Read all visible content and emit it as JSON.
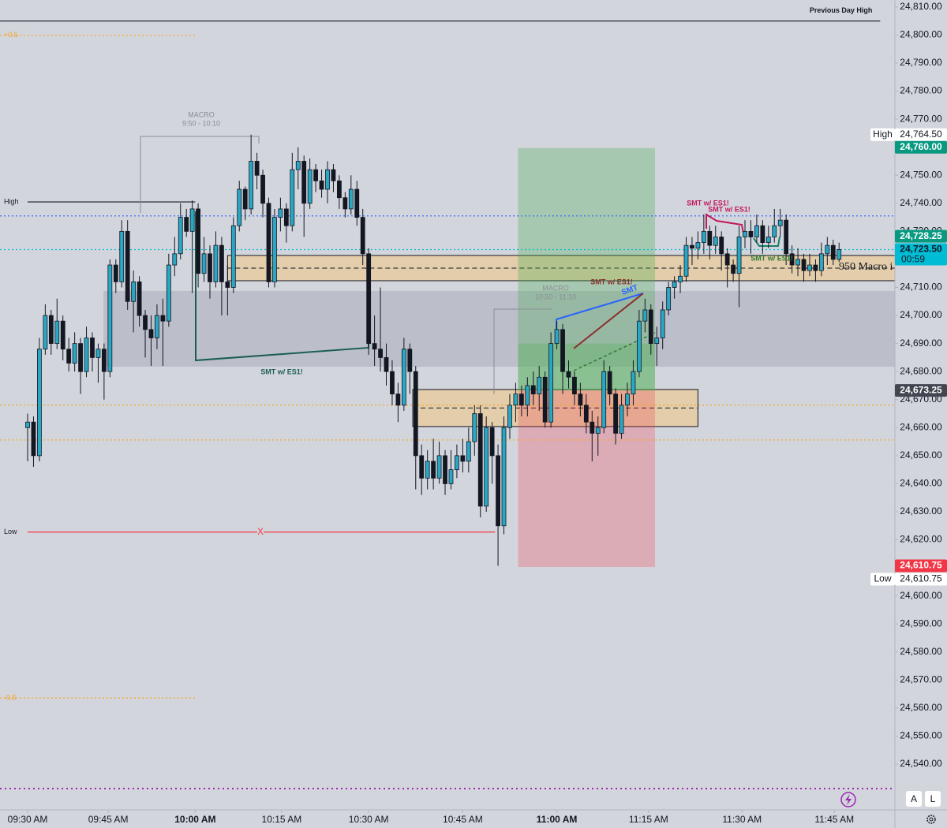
{
  "chart_data": {
    "type": "candlestick",
    "xlim": [
      -4.7,
      147.5
    ],
    "ylim": [
      24523.7,
      24812.5
    ],
    "xticks": [
      {
        "value": 0,
        "label": "09:30 AM"
      },
      {
        "value": 13.7,
        "label": "09:45 AM"
      },
      {
        "value": 28.5,
        "label": "10:00 AM",
        "bold": true
      },
      {
        "value": 43.2,
        "label": "10:15 AM"
      },
      {
        "value": 58,
        "label": "10:30 AM"
      },
      {
        "value": 74,
        "label": "10:45 AM"
      },
      {
        "value": 90,
        "label": "11:00 AM",
        "bold": true
      },
      {
        "value": 105.6,
        "label": "11:15 AM"
      },
      {
        "value": 121.5,
        "label": "11:30 AM"
      },
      {
        "value": 137.2,
        "label": "11:45 AM"
      }
    ],
    "yticks": [
      {
        "value": 24810,
        "label": "24,810.00"
      },
      {
        "value": 24800,
        "label": "24,800.00"
      },
      {
        "value": 24790,
        "label": "24,790.00"
      },
      {
        "value": 24780,
        "label": "24,780.00"
      },
      {
        "value": 24770,
        "label": "24,770.00"
      },
      {
        "value": 24760,
        "label": "24,760.00"
      },
      {
        "value": 24750,
        "label": "24,750.00"
      },
      {
        "value": 24740,
        "label": "24,740.00"
      },
      {
        "value": 24730,
        "label": "24,730.00"
      },
      {
        "value": 24720,
        "label": "24,720.00"
      },
      {
        "value": 24710,
        "label": "24,710.00"
      },
      {
        "value": 24700,
        "label": "24,700.00"
      },
      {
        "value": 24690,
        "label": "24,690.00"
      },
      {
        "value": 24680,
        "label": "24,680.00"
      },
      {
        "value": 24670,
        "label": "24,670.00"
      },
      {
        "value": 24660,
        "label": "24,660.00"
      },
      {
        "value": 24650,
        "label": "24,650.00"
      },
      {
        "value": 24640,
        "label": "24,640.00"
      },
      {
        "value": 24630,
        "label": "24,630.00"
      },
      {
        "value": 24620,
        "label": "24,620.00"
      },
      {
        "value": 24610,
        "label": "24,610.00"
      },
      {
        "value": 24600,
        "label": "24,600.00"
      },
      {
        "value": 24590,
        "label": "24,590.00"
      },
      {
        "value": 24580,
        "label": "24,580.00"
      },
      {
        "value": 24570,
        "label": "24,570.00"
      },
      {
        "value": 24560,
        "label": "24,560.00"
      },
      {
        "value": 24550,
        "label": "24,550.00"
      },
      {
        "value": 24540,
        "label": "24,540.00"
      }
    ],
    "up_color": "#2aa7c4",
    "down_color": "#131722",
    "ohlc": [
      [
        24660,
        24665,
        24648,
        24662
      ],
      [
        24662,
        24664,
        24646,
        24650
      ],
      [
        24650,
        24692,
        24648,
        24688
      ],
      [
        24688,
        24704,
        24686,
        24700
      ],
      [
        24700,
        24702,
        24686,
        24690
      ],
      [
        24690,
        24706,
        24688,
        24698
      ],
      [
        24698,
        24700,
        24684,
        24688
      ],
      [
        24688,
        24692,
        24680,
        24683
      ],
      [
        24683,
        24694,
        24680,
        24690
      ],
      [
        24690,
        24692,
        24672,
        24680
      ],
      [
        24680,
        24696,
        24678,
        24692
      ],
      [
        24692,
        24694,
        24680,
        24685
      ],
      [
        24685,
        24690,
        24676,
        24688
      ],
      [
        24688,
        24690,
        24670,
        24680
      ],
      [
        24680,
        24720,
        24678,
        24718
      ],
      [
        24718,
        24720,
        24708,
        24712
      ],
      [
        24712,
        24734,
        24710,
        24730
      ],
      [
        24730,
        24734,
        24702,
        24705
      ],
      [
        24705,
        24716,
        24694,
        24712
      ],
      [
        24712,
        24714,
        24696,
        24700
      ],
      [
        24700,
        24702,
        24685,
        24695
      ],
      [
        24695,
        24700,
        24682,
        24692
      ],
      [
        24692,
        24704,
        24688,
        24700
      ],
      [
        24700,
        24706,
        24682,
        24698
      ],
      [
        24698,
        24722,
        24696,
        24718
      ],
      [
        24718,
        24728,
        24714,
        24722
      ],
      [
        24722,
        24740,
        24720,
        24735
      ],
      [
        24735,
        24738,
        24728,
        24730
      ],
      [
        24730,
        24741,
        24708,
        24738
      ],
      [
        24738,
        24740,
        24710,
        24715
      ],
      [
        24715,
        24728,
        24712,
        24722
      ],
      [
        24722,
        24725,
        24706,
        24712
      ],
      [
        24712,
        24730,
        24710,
        24725
      ],
      [
        24725,
        24728,
        24700,
        24712
      ],
      [
        24712,
        24718,
        24700,
        24710
      ],
      [
        24710,
        24735,
        24708,
        24732
      ],
      [
        24732,
        24748,
        24730,
        24745
      ],
      [
        24745,
        24746,
        24734,
        24738
      ],
      [
        24738,
        24764.5,
        24736,
        24755
      ],
      [
        24755,
        24758,
        24745,
        24750
      ],
      [
        24750,
        24752,
        24735,
        24740
      ],
      [
        24740,
        24742,
        24710,
        24712
      ],
      [
        24712,
        24738,
        24710,
        24735
      ],
      [
        24735,
        24742,
        24730,
        24738
      ],
      [
        24738,
        24740,
        24726,
        24732
      ],
      [
        24732,
        24758,
        24730,
        24752
      ],
      [
        24752,
        24760,
        24745,
        24755
      ],
      [
        24755,
        24757,
        24728,
        24740
      ],
      [
        24740,
        24756,
        24738,
        24752
      ],
      [
        24752,
        24754,
        24744,
        24748
      ],
      [
        24748,
        24752,
        24742,
        24745
      ],
      [
        24745,
        24755,
        24740,
        24752
      ],
      [
        24752,
        24754,
        24744,
        24748
      ],
      [
        24748,
        24750,
        24738,
        24742
      ],
      [
        24742,
        24744,
        24735,
        24738
      ],
      [
        24738,
        24750,
        24736,
        24745
      ],
      [
        24745,
        24748,
        24732,
        24735
      ],
      [
        24735,
        24738,
        24718,
        24722
      ],
      [
        24722,
        24724,
        24686,
        24690
      ],
      [
        24690,
        24700,
        24682,
        24688
      ],
      [
        24688,
        24710,
        24680,
        24685
      ],
      [
        24685,
        24690,
        24675,
        24680
      ],
      [
        24680,
        24684,
        24668,
        24672
      ],
      [
        24672,
        24676,
        24662,
        24668
      ],
      [
        24668,
        24692,
        24666,
        24688
      ],
      [
        24688,
        24690,
        24672,
        24680
      ],
      [
        24680,
        24682,
        24638,
        24650
      ],
      [
        24650,
        24654,
        24636,
        24642
      ],
      [
        24642,
        24652,
        24638,
        24648
      ],
      [
        24648,
        24656,
        24638,
        24642
      ],
      [
        24642,
        24655,
        24640,
        24650
      ],
      [
        24650,
        24652,
        24636,
        24640
      ],
      [
        24640,
        24652,
        24638,
        24645
      ],
      [
        24645,
        24654,
        24642,
        24650
      ],
      [
        24650,
        24656,
        24644,
        24648
      ],
      [
        24648,
        24660,
        24644,
        24655
      ],
      [
        24655,
        24668,
        24650,
        24665
      ],
      [
        24665,
        24668,
        24628,
        24632
      ],
      [
        24632,
        24664,
        24630,
        24660
      ],
      [
        24660,
        24662,
        24640,
        24650
      ],
      [
        24650,
        24654,
        24610.75,
        24625
      ],
      [
        24625,
        24664,
        24622,
        24660
      ],
      [
        24660,
        24672,
        24656,
        24668
      ],
      [
        24668,
        24676,
        24662,
        24672
      ],
      [
        24672,
        24675,
        24664,
        24668
      ],
      [
        24668,
        24678,
        24664,
        24675
      ],
      [
        24675,
        24680,
        24668,
        24672
      ],
      [
        24672,
        24682,
        24666,
        24678
      ],
      [
        24678,
        24680,
        24660,
        24662
      ],
      [
        24662,
        24694,
        24660,
        24690
      ],
      [
        24690,
        24698,
        24688,
        24695
      ],
      [
        24695,
        24697,
        24672,
        24680
      ],
      [
        24680,
        24684,
        24674,
        24678
      ],
      [
        24678,
        24680,
        24668,
        24672
      ],
      [
        24672,
        24676,
        24664,
        24668
      ],
      [
        24668,
        24672,
        24658,
        24662
      ],
      [
        24662,
        24666,
        24648,
        24658
      ],
      [
        24658,
        24664,
        24650,
        24660
      ],
      [
        24660,
        24684,
        24658,
        24680
      ],
      [
        24680,
        24682,
        24668,
        24672
      ],
      [
        24672,
        24674,
        24654,
        24658
      ],
      [
        24658,
        24672,
        24656,
        24668
      ],
      [
        24668,
        24676,
        24664,
        24672
      ],
      [
        24672,
        24684,
        24668,
        24680
      ],
      [
        24680,
        24702,
        24678,
        24698
      ],
      [
        24698,
        24706,
        24694,
        24702
      ],
      [
        24702,
        24704,
        24686,
        24690
      ],
      [
        24690,
        24696,
        24682,
        24692
      ],
      [
        24692,
        24705,
        24688,
        24702
      ],
      [
        24702,
        24712,
        24700,
        24710
      ],
      [
        24710,
        24714,
        24706,
        24712
      ],
      [
        24712,
        24718,
        24708,
        24714
      ],
      [
        24714,
        24728,
        24712,
        24725
      ],
      [
        24725,
        24728,
        24718,
        24724
      ],
      [
        24724,
        24730,
        24720,
        24726
      ],
      [
        24726,
        24736,
        24722,
        24730
      ],
      [
        24730,
        24732,
        24720,
        24725
      ],
      [
        24725,
        24732,
        24722,
        24728
      ],
      [
        24728,
        24730,
        24716,
        24722
      ],
      [
        24722,
        24724,
        24710,
        24718
      ],
      [
        24718,
        24720,
        24712,
        24715
      ],
      [
        24715,
        24732,
        24703,
        24728
      ],
      [
        24728,
        24734,
        24724,
        24730
      ],
      [
        24730,
        24734,
        24722,
        24728
      ],
      [
        24728,
        24736,
        24726,
        24732
      ],
      [
        24732,
        24734,
        24722,
        24726
      ],
      [
        24726,
        24732,
        24724,
        24728
      ],
      [
        24728,
        24738,
        24726,
        24732
      ],
      [
        24732,
        24738,
        24728,
        24734
      ],
      [
        24734,
        24736,
        24718,
        24722
      ],
      [
        24722,
        24725,
        24715,
        24718
      ],
      [
        24718,
        24724,
        24714,
        24720
      ],
      [
        24720,
        24722,
        24712,
        24716
      ],
      [
        24716,
        24722,
        24714,
        24718
      ],
      [
        24718,
        24720,
        24712,
        24716
      ],
      [
        24716,
        24726,
        24714,
        24722
      ],
      [
        24722,
        24728,
        24718,
        24725
      ],
      [
        24725,
        24727,
        24718,
        24720
      ],
      [
        24720,
        24726,
        24719,
        24723.5
      ]
    ],
    "zones": [
      {
        "x": [
          12.9,
          147.5
        ],
        "y": [
          24681.75,
          24708.75
        ],
        "color": "rgba(150,152,170,0.38)"
      },
      {
        "x": [
          34,
          147.5
        ],
        "y": [
          24712.4,
          24721.4
        ],
        "color": "rgba(240,198,128,0.55)",
        "mid": true
      },
      {
        "x": [
          65.5,
          114
        ],
        "y": [
          24660.4,
          24673.6
        ],
        "color": "rgba(240,198,128,0.55)",
        "mid": true
      },
      {
        "x": [
          83.4,
          106.7
        ],
        "y": [
          24673.25,
          24759.7
        ],
        "color": "rgba(76,175,80,0.32)"
      },
      {
        "x": [
          83.4,
          106.7
        ],
        "y": [
          24673.25,
          24690
        ],
        "color": "rgba(76,175,80,0.3)"
      },
      {
        "x": [
          83.4,
          106.7
        ],
        "y": [
          24610.3,
          24673.25
        ],
        "color": "rgba(242,54,69,0.26)"
      }
    ],
    "levels": [
      {
        "value": 24805,
        "x": [
          -4.7,
          145
        ],
        "color": "#131722",
        "label": "Previous Day High",
        "label_side": "right"
      },
      {
        "value": 24799.9,
        "x": [
          -4.7,
          28.5
        ],
        "color": "#f5a623",
        "dash": true,
        "label": "+0.5"
      },
      {
        "value": 24563.6,
        "x": [
          -4.7,
          28.5
        ],
        "color": "#f5a623",
        "dash": true,
        "label": "-0.5"
      },
      {
        "value": 24740.5,
        "x": [
          0,
          28.5
        ],
        "color": "#131722",
        "label": "High"
      },
      {
        "value": 24622.75,
        "x": [
          0,
          79.5
        ],
        "color": "#f23645",
        "label": "Low"
      },
      {
        "value": 24735.5,
        "x": [
          -4.7,
          147.5
        ],
        "color": "#2962ff",
        "dash": true
      },
      {
        "value": 24723.5,
        "x": [
          -4.7,
          147.5
        ],
        "color": "#00bcd4",
        "dash": true
      },
      {
        "value": 24668,
        "x": [
          -4.7,
          147.5
        ],
        "color": "#f5a623",
        "dash": true
      },
      {
        "value": 24655.6,
        "x": [
          -4.7,
          147.5
        ],
        "color": "#f5a623",
        "dash": true
      },
      {
        "value": 24531.3,
        "x": [
          -4.7,
          147.5
        ],
        "color": "#9c27b0",
        "dash": true
      }
    ],
    "price_labels": [
      {
        "value": 24764.5,
        "label": "24,764.50",
        "tag": "High",
        "bg": "#ffffff",
        "fg": "#131722"
      },
      {
        "value": 24760,
        "label": "24,760.00",
        "bg": "#089981",
        "fg": "#ffffff"
      },
      {
        "value": 24728.25,
        "label": "24,728.25",
        "bg": "#089981",
        "fg": "#ffffff"
      },
      {
        "value": 24723.5,
        "label": "24,723.50",
        "sub": "00:59",
        "bg": "#00bcd4",
        "fg": "#131722"
      },
      {
        "value": 24673.25,
        "label": "24,673.25",
        "bg": "#434651",
        "fg": "#ffffff"
      },
      {
        "value": 24610.75,
        "label": "24,610.75",
        "bg": "#f23645",
        "fg": "#ffffff"
      },
      {
        "value": 24610.75,
        "label": "24,610.75",
        "tag": "Low",
        "bg": "#ffffff",
        "fg": "#131722"
      }
    ],
    "annotations": [
      {
        "text": "MACRO",
        "color": "#8a8d96"
      },
      {
        "text": "9:50 - 10:10",
        "color": "#8a8d96"
      },
      {
        "text": "MACRO",
        "color": "#8a8d96"
      },
      {
        "text": "10:50 - 11:10",
        "color": "#8a8d96"
      },
      {
        "text": "SMT w/ ES1!",
        "color": "#1b5e50"
      },
      {
        "text": "SMT w/ ES1!",
        "color": "#8b2d2d"
      },
      {
        "text": "SMT",
        "color": "#2962ff"
      },
      {
        "text": "SMT w/ ES1!",
        "color": "#c2185b"
      },
      {
        "text": "SMT w/ ES1!",
        "color": "#c2185b"
      },
      {
        "text": "SMT w/ ES1!",
        "color": "#2e7d32"
      },
      {
        "text": "950 Macro i",
        "color": "#131722"
      },
      {
        "text": "X",
        "color": "#f23645"
      }
    ]
  }
}
